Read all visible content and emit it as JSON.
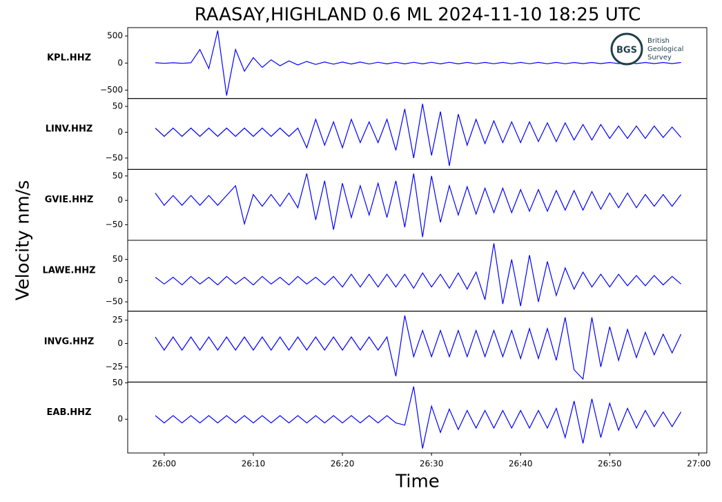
{
  "title": "RAASAY,HIGHLAND 0.6 ML   2024-11-10 18:25 UTC",
  "ylabel": "Velocity nm/s",
  "xlabel": "Time",
  "logo": {
    "abbr": "BGS",
    "name": [
      "British",
      "Geological",
      "Survey"
    ]
  },
  "xlim": [
    1555.9,
    1620.9
  ],
  "xticks": [
    {
      "value": 1560,
      "label": "26:00"
    },
    {
      "value": 1570,
      "label": "26:10"
    },
    {
      "value": 1580,
      "label": "26:20"
    },
    {
      "value": 1590,
      "label": "26:30"
    },
    {
      "value": 1600,
      "label": "26:40"
    },
    {
      "value": 1610,
      "label": "26:50"
    },
    {
      "value": 1620,
      "label": "27:00"
    }
  ],
  "x": [
    1559,
    1560,
    1561,
    1562,
    1563,
    1564,
    1565,
    1566,
    1567,
    1568,
    1569,
    1570,
    1571,
    1572,
    1573,
    1574,
    1575,
    1576,
    1577,
    1578,
    1579,
    1580,
    1581,
    1582,
    1583,
    1584,
    1585,
    1586,
    1587,
    1588,
    1589,
    1590,
    1591,
    1592,
    1593,
    1594,
    1595,
    1596,
    1597,
    1598,
    1599,
    1600,
    1601,
    1602,
    1603,
    1604,
    1605,
    1606,
    1607,
    1608,
    1609,
    1610,
    1611,
    1612,
    1613,
    1614,
    1615,
    1616,
    1617,
    1618
  ],
  "chart_data": [
    {
      "type": "line",
      "label": "KPL.HHZ",
      "color": "#0000ff",
      "ylim": [
        -654,
        654
      ],
      "yticks": [
        {
          "value": -500,
          "label": "−500"
        },
        0,
        500
      ],
      "values": [
        5,
        -5,
        5,
        -5,
        5,
        250,
        -100,
        600,
        -600,
        250,
        -150,
        100,
        -80,
        60,
        -50,
        40,
        -35,
        30,
        -25,
        20,
        -20,
        18,
        -18,
        18,
        -18,
        15,
        -15,
        15,
        -15,
        15,
        -15,
        15,
        -15,
        15,
        -15,
        12,
        -12,
        12,
        -12,
        12,
        -12,
        12,
        -12,
        12,
        -12,
        12,
        -12,
        10,
        -10,
        10,
        -10,
        10,
        -10,
        10,
        -10,
        10,
        -10,
        10,
        -10,
        10
      ]
    },
    {
      "type": "line",
      "label": "LINV.HHZ",
      "color": "#0000ff",
      "ylim": [
        -72,
        65.3
      ],
      "yticks": [
        {
          "value": -50,
          "label": "−50"
        },
        0,
        50
      ],
      "values": [
        8,
        -8,
        8,
        -8,
        8,
        -8,
        8,
        -8,
        8,
        -8,
        8,
        -8,
        8,
        -8,
        8,
        -8,
        8,
        -30,
        25,
        -25,
        20,
        -30,
        25,
        -20,
        20,
        -20,
        25,
        -35,
        45,
        -50,
        55,
        -45,
        40,
        -65,
        35,
        -25,
        25,
        -22,
        22,
        -20,
        20,
        -20,
        20,
        -18,
        18,
        -18,
        18,
        -15,
        15,
        -15,
        15,
        -12,
        12,
        -12,
        12,
        -12,
        12,
        -10,
        10,
        -10
      ]
    },
    {
      "type": "line",
      "label": "GVIE.HHZ",
      "color": "#0000ff",
      "ylim": [
        -81.7,
        63.4
      ],
      "yticks": [
        {
          "value": -50,
          "label": "−50"
        },
        0,
        50
      ],
      "values": [
        15,
        -10,
        10,
        -10,
        10,
        -10,
        10,
        -10,
        10,
        30,
        -48,
        12,
        -12,
        12,
        -12,
        15,
        -15,
        55,
        -40,
        40,
        -60,
        35,
        -35,
        30,
        -30,
        35,
        -35,
        40,
        -55,
        55,
        -75,
        50,
        -45,
        30,
        -30,
        28,
        -28,
        25,
        -25,
        25,
        -25,
        22,
        -22,
        22,
        -22,
        20,
        -20,
        20,
        -20,
        18,
        -18,
        15,
        -15,
        15,
        -15,
        12,
        -12,
        12,
        -12,
        12
      ]
    },
    {
      "type": "line",
      "label": "LAWE.HHZ",
      "color": "#0000ff",
      "ylim": [
        -72,
        95
      ],
      "yticks": [
        {
          "value": -50,
          "label": "−50"
        },
        0,
        50
      ],
      "values": [
        8,
        -8,
        8,
        -10,
        10,
        -8,
        8,
        -10,
        10,
        -8,
        8,
        -10,
        10,
        -8,
        8,
        -10,
        10,
        -8,
        8,
        -10,
        10,
        -15,
        15,
        -15,
        15,
        -15,
        15,
        -15,
        15,
        -18,
        18,
        -15,
        15,
        -18,
        18,
        -20,
        20,
        -45,
        88,
        -55,
        50,
        -60,
        60,
        -50,
        45,
        -35,
        30,
        -20,
        20,
        -15,
        15,
        -15,
        15,
        -12,
        12,
        -12,
        12,
        -10,
        10,
        -8
      ]
    },
    {
      "type": "line",
      "label": "INVG.HHZ",
      "color": "#0000ff",
      "ylim": [
        -41.2,
        34.6
      ],
      "yticks": [
        {
          "value": -25,
          "label": "−25"
        },
        0,
        25
      ],
      "values": [
        7,
        -7,
        7,
        -7,
        7,
        -7,
        7,
        -7,
        7,
        -7,
        7,
        -7,
        7,
        -7,
        7,
        -7,
        7,
        -7,
        7,
        -7,
        7,
        -7,
        7,
        -7,
        7,
        -7,
        7,
        -35,
        30,
        -14,
        14,
        -14,
        14,
        -14,
        14,
        -14,
        14,
        -14,
        14,
        -14,
        14,
        -16,
        16,
        -16,
        16,
        -18,
        28,
        -28,
        -38,
        28,
        -25,
        18,
        -18,
        15,
        -15,
        12,
        -12,
        10,
        -10,
        10
      ]
    },
    {
      "type": "line",
      "label": "EAB.HHZ",
      "color": "#0000ff",
      "ylim": [
        -46.2,
        51
      ],
      "yticks": [
        0,
        50
      ],
      "values": [
        5,
        -5,
        5,
        -5,
        5,
        -5,
        5,
        -5,
        5,
        -5,
        5,
        -5,
        5,
        -5,
        5,
        -5,
        5,
        -5,
        5,
        -5,
        5,
        -5,
        5,
        -5,
        5,
        -5,
        5,
        -5,
        -8,
        45,
        -40,
        18,
        -18,
        14,
        -14,
        12,
        -12,
        12,
        -12,
        12,
        -12,
        12,
        -12,
        12,
        -12,
        15,
        -25,
        25,
        -33,
        28,
        -25,
        22,
        -15,
        15,
        -12,
        12,
        -10,
        10,
        -10,
        10
      ]
    }
  ]
}
